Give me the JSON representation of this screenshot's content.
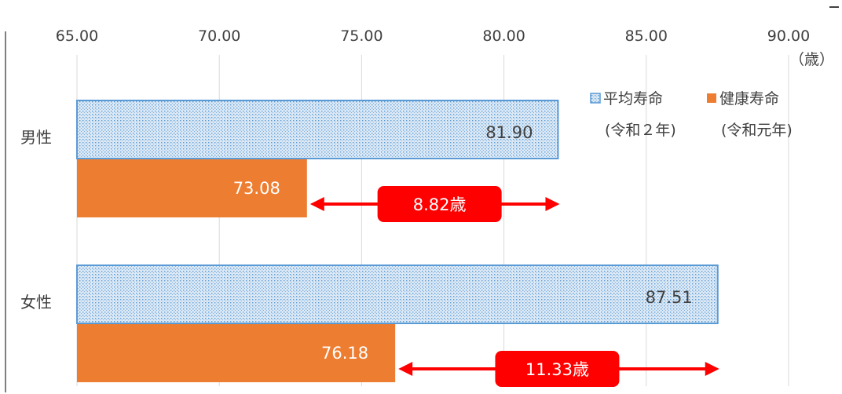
{
  "chart_data": {
    "type": "bar",
    "orientation": "horizontal",
    "unit_label": "（歳）",
    "xlim": [
      65,
      90
    ],
    "x_ticks": [
      "65.00",
      "70.00",
      "75.00",
      "80.00",
      "85.00",
      "90.00"
    ],
    "categories": [
      "男性",
      "女性"
    ],
    "series": [
      {
        "name": "平均寿命",
        "name_sub": "(令和２年)",
        "values": [
          81.9,
          87.51
        ],
        "labels": [
          "81.90",
          "87.51"
        ],
        "color": "#5b9bd5",
        "style": "dotted"
      },
      {
        "name": "健康寿命",
        "name_sub": "(令和元年)",
        "values": [
          73.08,
          76.18
        ],
        "labels": [
          "73.08",
          "76.18"
        ],
        "color": "#ed7d31",
        "style": "solid"
      }
    ],
    "differences": [
      {
        "category": "男性",
        "label": "8.82歳"
      },
      {
        "category": "女性",
        "label": "11.33歳"
      }
    ],
    "annotation_color": "#ff0000",
    "grid": true,
    "legend_position": "top-right"
  }
}
